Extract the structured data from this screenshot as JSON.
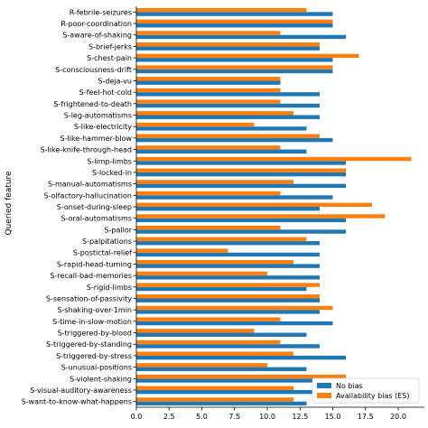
{
  "chart_data": {
    "type": "bar",
    "orientation": "horizontal",
    "xlabel": "",
    "ylabel": "Queried feature",
    "xlim": [
      0,
      22
    ],
    "xticks": [
      "0.0",
      "2.5",
      "5.0",
      "7.5",
      "10.0",
      "12.5",
      "15.0",
      "17.5",
      "20.0"
    ],
    "grid": false,
    "legend_position": "bottom-right",
    "categories": [
      "R-febrile-seizures",
      "R-poor-coordination",
      "S-aware-of-shaking",
      "S-brief-jerks",
      "S-chest-pain",
      "S-consciousness-drift",
      "S-deja-vu",
      "S-feel-hot-cold",
      "S-frightened-to-death",
      "S-leg-automatisms",
      "S-like-electricity",
      "S-like-hammer-blow",
      "S-like-knife-through-head",
      "S-limp-limbs",
      "S-locked-in",
      "S-manual-automatisms",
      "S-olfactory-hallucination",
      "S-onset-during-sleep",
      "S-oral-automatisms",
      "S-pallor",
      "S-palpitations",
      "S-postictal-relief",
      "S-rapid-head-turning",
      "S-recall-bad-memories",
      "S-rigid-limbs",
      "S-sensation-of-passivity",
      "S-shaking-over-1min",
      "S-time-in-slow-motion",
      "S-triggered-by-blood",
      "S-triggered-by-standing",
      "S-triggered-by-stress",
      "S-unusual-positions",
      "S-violent-shaking",
      "S-visual-auditory-awareness",
      "S-want-to-know-what-happens"
    ],
    "series": [
      {
        "name": "No bias",
        "color": "#1f77b4",
        "values": [
          15,
          15,
          16,
          14,
          15,
          15,
          11,
          14,
          14,
          14,
          13,
          15,
          13,
          16,
          16,
          16,
          15,
          14,
          16,
          16,
          14,
          14,
          14,
          14,
          13,
          14,
          14,
          15,
          13,
          14,
          16,
          13,
          14,
          16,
          13
        ]
      },
      {
        "name": "Availability bias (ES)",
        "color": "#ff7f0e",
        "values": [
          13,
          15,
          11,
          14,
          17,
          15,
          11,
          11,
          11,
          12,
          9,
          14,
          11,
          21,
          16,
          12,
          11,
          18,
          19,
          11,
          13,
          7,
          12,
          10,
          14,
          14,
          15,
          11,
          9,
          11,
          12,
          10,
          16,
          12,
          12
        ]
      }
    ]
  }
}
